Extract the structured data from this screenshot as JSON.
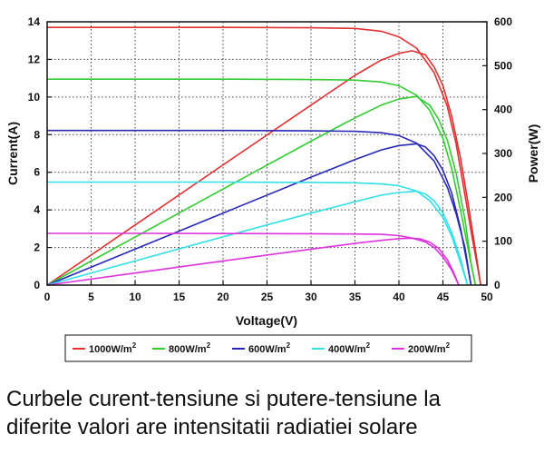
{
  "caption": {
    "line1": "Curbele curent-tensiune si putere-tensiune la",
    "line2": "diferite valori are intensitatii radiatiei solare"
  },
  "chart_data": {
    "type": "line",
    "xlabel": "Voltage(V)",
    "ylabel": "Current(A)",
    "y2label": "Power(W)",
    "xlim": [
      0,
      50
    ],
    "ylim": [
      0,
      14
    ],
    "y2lim": [
      0,
      600
    ],
    "xticks": [
      0,
      5,
      10,
      15,
      20,
      25,
      30,
      35,
      40,
      45,
      50
    ],
    "yticks": [
      0,
      2,
      4,
      6,
      8,
      10,
      12,
      14
    ],
    "y2ticks": [
      0,
      100,
      200,
      300,
      400,
      500,
      600
    ],
    "grid": true,
    "legend_position": "bottom",
    "series": [
      {
        "name": "1000W/m²",
        "color": "#e03030",
        "current": [
          [
            0,
            13.7
          ],
          [
            10,
            13.7
          ],
          [
            20,
            13.7
          ],
          [
            30,
            13.68
          ],
          [
            35,
            13.65
          ],
          [
            38,
            13.5
          ],
          [
            40,
            13.2
          ],
          [
            42,
            12.6
          ],
          [
            44,
            11.3
          ],
          [
            45.5,
            9.5
          ],
          [
            46.5,
            7.5
          ],
          [
            47.5,
            4.8
          ],
          [
            48.3,
            2.6
          ],
          [
            49,
            0.8
          ],
          [
            49.3,
            0
          ]
        ],
        "power": [
          [
            0,
            0
          ],
          [
            10,
            137
          ],
          [
            20,
            274
          ],
          [
            30,
            410
          ],
          [
            35,
            478
          ],
          [
            38,
            513
          ],
          [
            40,
            528
          ],
          [
            41.5,
            534
          ],
          [
            43,
            525
          ],
          [
            44,
            497
          ],
          [
            45,
            455
          ],
          [
            46,
            385
          ],
          [
            47,
            290
          ],
          [
            48,
            170
          ],
          [
            49,
            40
          ],
          [
            49.3,
            0
          ]
        ]
      },
      {
        "name": "800W/m²",
        "color": "#33cc33",
        "current": [
          [
            0,
            10.95
          ],
          [
            10,
            10.95
          ],
          [
            20,
            10.95
          ],
          [
            30,
            10.93
          ],
          [
            35,
            10.9
          ],
          [
            38,
            10.8
          ],
          [
            40,
            10.6
          ],
          [
            42,
            10.1
          ],
          [
            43.5,
            9.3
          ],
          [
            45,
            7.8
          ],
          [
            46,
            6.2
          ],
          [
            47,
            4.0
          ],
          [
            48,
            1.6
          ],
          [
            48.7,
            0
          ]
        ],
        "power": [
          [
            0,
            0
          ],
          [
            10,
            109.5
          ],
          [
            20,
            219
          ],
          [
            30,
            328
          ],
          [
            35,
            381
          ],
          [
            38,
            410
          ],
          [
            40,
            424
          ],
          [
            42,
            430
          ],
          [
            43.5,
            410
          ],
          [
            44.5,
            378
          ],
          [
            45.5,
            330
          ],
          [
            46.5,
            255
          ],
          [
            47.5,
            150
          ],
          [
            48.2,
            50
          ],
          [
            48.7,
            0
          ]
        ]
      },
      {
        "name": "600W/m²",
        "color": "#2828b8",
        "current": [
          [
            0,
            8.22
          ],
          [
            10,
            8.22
          ],
          [
            20,
            8.22
          ],
          [
            30,
            8.2
          ],
          [
            35,
            8.18
          ],
          [
            38,
            8.1
          ],
          [
            40,
            7.95
          ],
          [
            42,
            7.55
          ],
          [
            44,
            6.6
          ],
          [
            45.5,
            5.2
          ],
          [
            46.5,
            3.8
          ],
          [
            47.5,
            2.0
          ],
          [
            48.2,
            0
          ]
        ],
        "power": [
          [
            0,
            0
          ],
          [
            10,
            82
          ],
          [
            20,
            164
          ],
          [
            30,
            246
          ],
          [
            35,
            286
          ],
          [
            38,
            308
          ],
          [
            40,
            318
          ],
          [
            42,
            322
          ],
          [
            43,
            315
          ],
          [
            44,
            295
          ],
          [
            45,
            262
          ],
          [
            46,
            210
          ],
          [
            47,
            130
          ],
          [
            47.7,
            55
          ],
          [
            48.2,
            0
          ]
        ]
      },
      {
        "name": "400W/m²",
        "color": "#33e0e8",
        "current": [
          [
            0,
            5.48
          ],
          [
            10,
            5.48
          ],
          [
            20,
            5.48
          ],
          [
            30,
            5.46
          ],
          [
            35,
            5.44
          ],
          [
            38,
            5.38
          ],
          [
            40,
            5.28
          ],
          [
            42,
            5.0
          ],
          [
            43.5,
            4.5
          ],
          [
            45,
            3.6
          ],
          [
            46,
            2.6
          ],
          [
            47,
            1.2
          ],
          [
            47.8,
            0
          ]
        ],
        "power": [
          [
            0,
            0
          ],
          [
            10,
            55
          ],
          [
            20,
            110
          ],
          [
            30,
            164
          ],
          [
            35,
            190
          ],
          [
            38,
            205
          ],
          [
            40,
            211
          ],
          [
            42,
            214
          ],
          [
            43,
            208
          ],
          [
            44,
            192
          ],
          [
            45,
            165
          ],
          [
            46,
            120
          ],
          [
            47,
            60
          ],
          [
            47.8,
            0
          ]
        ]
      },
      {
        "name": "200W/m²",
        "color": "#dd33dd",
        "current": [
          [
            0,
            2.75
          ],
          [
            10,
            2.75
          ],
          [
            20,
            2.74
          ],
          [
            30,
            2.73
          ],
          [
            35,
            2.72
          ],
          [
            38,
            2.7
          ],
          [
            40,
            2.63
          ],
          [
            41.5,
            2.5
          ],
          [
            43,
            2.3
          ],
          [
            44,
            2.0
          ],
          [
            45,
            1.5
          ],
          [
            46,
            0.8
          ],
          [
            46.8,
            0
          ]
        ],
        "power": [
          [
            0,
            0
          ],
          [
            10,
            27.5
          ],
          [
            20,
            55
          ],
          [
            30,
            82
          ],
          [
            35,
            95
          ],
          [
            38,
            102
          ],
          [
            40,
            106
          ],
          [
            41.5,
            107
          ],
          [
            42.5,
            105
          ],
          [
            43.5,
            98
          ],
          [
            44.5,
            84
          ],
          [
            45.5,
            58
          ],
          [
            46.2,
            30
          ],
          [
            46.8,
            0
          ]
        ]
      }
    ]
  }
}
